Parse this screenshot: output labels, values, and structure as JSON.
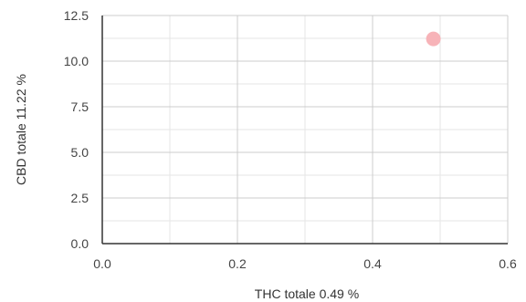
{
  "chart_data": {
    "type": "scatter",
    "title": "",
    "xlabel": "THC totale 0.49 %",
    "ylabel": "CBD totale 11.22 %",
    "xlim": [
      0,
      0.6
    ],
    "ylim": [
      0,
      12.5
    ],
    "x_ticks": [
      0.0,
      0.2,
      0.4,
      0.6
    ],
    "x_tick_labels": [
      "0.0",
      "0.2",
      "0.4",
      "0.6"
    ],
    "y_ticks": [
      0.0,
      2.5,
      5.0,
      7.5,
      10.0,
      12.5
    ],
    "y_tick_labels": [
      "0.0",
      "2.5",
      "5.0",
      "7.5",
      "10.0",
      "12.5"
    ],
    "grid": true,
    "legend": "none",
    "series": [
      {
        "color": "#f7b3b8",
        "points": [
          {
            "x": 0.49,
            "y": 11.22
          }
        ]
      }
    ]
  }
}
